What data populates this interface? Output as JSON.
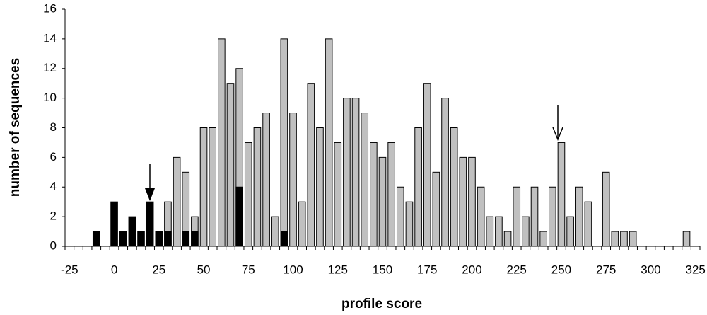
{
  "chart_data": {
    "type": "bar",
    "xlabel": "profile score",
    "ylabel": "number of sequences",
    "categories": [
      -25,
      null,
      null,
      null,
      null,
      0,
      null,
      null,
      null,
      null,
      25,
      null,
      null,
      null,
      null,
      50,
      null,
      null,
      null,
      null,
      75,
      null,
      null,
      null,
      null,
      100,
      null,
      null,
      null,
      null,
      125,
      null,
      null,
      null,
      null,
      150,
      null,
      null,
      null,
      null,
      175,
      null,
      null,
      null,
      null,
      200,
      null,
      null,
      null,
      null,
      225,
      null,
      null,
      null,
      null,
      250,
      null,
      null,
      null,
      null,
      275,
      null,
      null,
      null,
      null,
      300,
      null,
      null,
      null,
      null,
      325
    ],
    "series": [
      {
        "color": "#c0c0c0",
        "values": [
          0,
          0,
          0,
          0,
          0,
          0,
          0,
          0,
          0,
          0,
          0,
          3,
          6,
          5,
          2,
          8,
          8,
          14,
          11,
          12,
          7,
          8,
          9,
          2,
          14,
          9,
          3,
          11,
          8,
          14,
          7,
          10,
          10,
          9,
          7,
          6,
          7,
          4,
          3,
          8,
          11,
          5,
          10,
          8,
          6,
          6,
          4,
          2,
          2,
          1,
          4,
          2,
          4,
          1,
          4,
          7,
          2,
          4,
          3,
          0,
          5,
          1,
          1,
          1,
          0,
          0,
          0,
          0,
          0,
          1,
          0
        ]
      },
      {
        "color": "#000000",
        "values": [
          0,
          0,
          0,
          1,
          0,
          3,
          1,
          2,
          1,
          3,
          1,
          1,
          0,
          1,
          1,
          0,
          0,
          0,
          0,
          4,
          0,
          0,
          0,
          0,
          1,
          0,
          0,
          0,
          0,
          0,
          0,
          0,
          0,
          0,
          0,
          0,
          0,
          0,
          0,
          0,
          0,
          0,
          0,
          0,
          0,
          0,
          0,
          0,
          0,
          0,
          0,
          0,
          0,
          0,
          0,
          0,
          0,
          0,
          0,
          0,
          0,
          0,
          0,
          0,
          0,
          0,
          0,
          0,
          0,
          0,
          0
        ]
      }
    ],
    "ylim": [
      0,
      16
    ],
    "yticks": [
      0,
      2,
      4,
      6,
      8,
      10,
      12,
      14,
      16
    ]
  }
}
